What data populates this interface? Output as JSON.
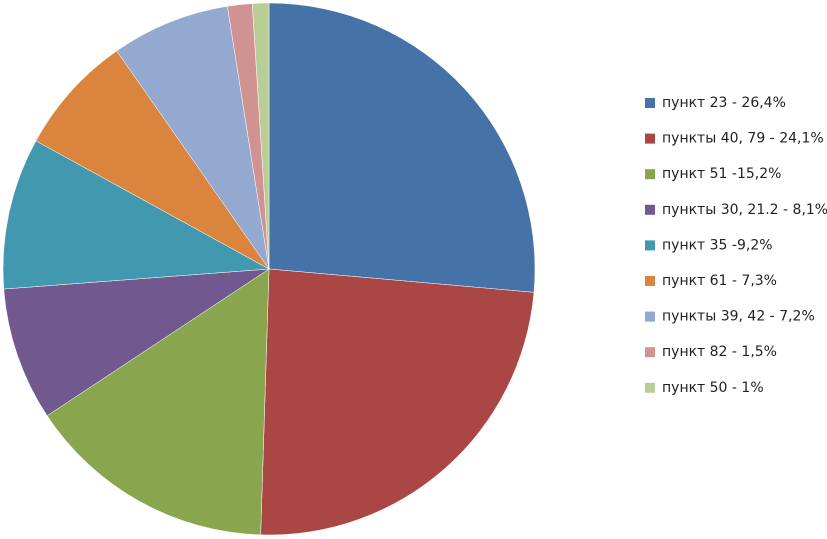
{
  "chart_data": {
    "type": "pie",
    "categories": [
      "пункт 23 - 26,4%",
      "пункты 40, 79 - 24,1%",
      "пункт 51 -15,2%",
      "пункты 30, 21.2 - 8,1%",
      "пункт 35 -9,2%",
      "пункт 61 - 7,3%",
      "пункты 39, 42 - 7,2%",
      "пункт 82 - 1,5%",
      "пункт 50 - 1%"
    ],
    "values": [
      26.4,
      24.1,
      15.2,
      8.1,
      9.2,
      7.3,
      7.2,
      1.5,
      1
    ],
    "colors": [
      "#4572a7",
      "#aa4643",
      "#89a54e",
      "#71588f",
      "#4198af",
      "#db843d",
      "#93a9cf",
      "#d19392",
      "#b9cd96"
    ],
    "legend": "right"
  }
}
